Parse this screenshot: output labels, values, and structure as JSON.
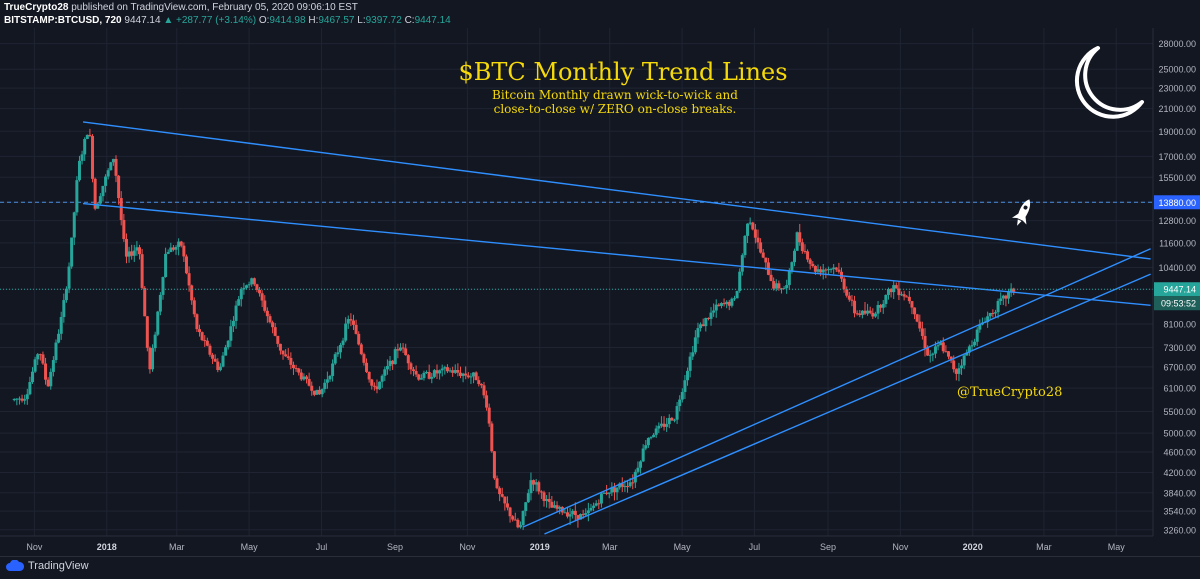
{
  "header": {
    "author": "TrueCrypto28",
    "published_text": " published on TradingView.com, February 05, 2020 09:06:10 EST",
    "symbol": "BITSTAMP:BTCUSD, 720",
    "last": "9447.14",
    "change": "▲ +287.77 (+3.14%)",
    "o_label": "O:",
    "o_value": "9414.98",
    "h_label": "H:",
    "h_value": "9467.57",
    "l_label": "L:",
    "l_value": "9397.72",
    "c_label": "C:",
    "c_value": "9447.14"
  },
  "annotations": {
    "title": "$BTC Monthly Trend Lines",
    "subtitle_line1": "Bitcoin Monthly drawn wick-to-wick and",
    "subtitle_line2": "close-to-close w/ ZERO on-close breaks.",
    "handle": "@TrueCrypto28"
  },
  "footer": {
    "brand": "TradingView"
  },
  "chart_data": {
    "type": "candlestick",
    "symbol": "BTCUSD",
    "interval": "720",
    "scale": "log",
    "ylim": [
      3200,
      30000
    ],
    "y_ticks": [
      "28000.00",
      "25000.00",
      "23000.00",
      "21000.00",
      "19000.00",
      "17000.00",
      "15500.00",
      "13880.00",
      "12800.00",
      "11600.00",
      "10400.00",
      "9447.14",
      "8100.00",
      "7300.00",
      "6700.00",
      "6100.00",
      "5500.00",
      "5000.00",
      "4600.00",
      "4200.00",
      "3840.00",
      "3540.00",
      "3260.00"
    ],
    "y_tick_values": [
      28000,
      25000,
      23000,
      21000,
      19000,
      17000,
      15500,
      13880,
      12800,
      11600,
      10400,
      9447.14,
      8100,
      7300,
      6700,
      6100,
      5500,
      5000,
      4600,
      4200,
      3840,
      3540,
      3260
    ],
    "x_ticks": [
      "Nov",
      "2018",
      "Mar",
      "May",
      "Jul",
      "Sep",
      "Nov",
      "2019",
      "Mar",
      "May",
      "Jul",
      "Sep",
      "Nov",
      "2020",
      "Mar",
      "May"
    ],
    "x_tick_dates": [
      "2017-11-01",
      "2018-01-01",
      "2018-03-01",
      "2018-05-01",
      "2018-07-01",
      "2018-09-01",
      "2018-11-01",
      "2019-01-01",
      "2019-03-01",
      "2019-05-01",
      "2019-07-01",
      "2019-09-01",
      "2019-11-01",
      "2020-01-01",
      "2020-03-01",
      "2020-05-01"
    ],
    "bold_x_ticks": [
      "2018",
      "2019",
      "2020"
    ],
    "price_path": [
      [
        "2017-10-15",
        5800
      ],
      [
        "2017-10-25",
        5900
      ],
      [
        "2017-11-05",
        7300
      ],
      [
        "2017-11-12",
        6100
      ],
      [
        "2017-11-25",
        8600
      ],
      [
        "2017-12-01",
        10800
      ],
      [
        "2017-12-08",
        16200
      ],
      [
        "2017-12-17",
        19500
      ],
      [
        "2017-12-22",
        13500
      ],
      [
        "2017-12-28",
        14800
      ],
      [
        "2018-01-07",
        17000
      ],
      [
        "2018-01-17",
        10800
      ],
      [
        "2018-01-28",
        11500
      ],
      [
        "2018-02-06",
        6500
      ],
      [
        "2018-02-20",
        11200
      ],
      [
        "2018-03-05",
        11500
      ],
      [
        "2018-03-18",
        7900
      ],
      [
        "2018-04-06",
        6600
      ],
      [
        "2018-04-25",
        9600
      ],
      [
        "2018-05-05",
        9800
      ],
      [
        "2018-05-29",
        7100
      ],
      [
        "2018-06-12",
        6500
      ],
      [
        "2018-06-29",
        5900
      ],
      [
        "2018-07-10",
        6700
      ],
      [
        "2018-07-25",
        8400
      ],
      [
        "2018-08-14",
        6000
      ],
      [
        "2018-08-31",
        7000
      ],
      [
        "2018-09-05",
        7400
      ],
      [
        "2018-09-20",
        6400
      ],
      [
        "2018-10-15",
        6600
      ],
      [
        "2018-11-10",
        6400
      ],
      [
        "2018-11-18",
        5600
      ],
      [
        "2018-11-25",
        3900
      ],
      [
        "2018-12-15",
        3250
      ],
      [
        "2018-12-25",
        4100
      ],
      [
        "2019-01-10",
        3600
      ],
      [
        "2019-02-08",
        3450
      ],
      [
        "2019-02-25",
        3850
      ],
      [
        "2019-03-20",
        4050
      ],
      [
        "2019-04-02",
        4900
      ],
      [
        "2019-04-25",
        5400
      ],
      [
        "2019-05-14",
        7900
      ],
      [
        "2019-05-30",
        8700
      ],
      [
        "2019-06-15",
        9000
      ],
      [
        "2019-06-26",
        13200
      ],
      [
        "2019-07-05",
        11300
      ],
      [
        "2019-07-17",
        9600
      ],
      [
        "2019-07-28",
        9500
      ],
      [
        "2019-08-06",
        12000
      ],
      [
        "2019-08-20",
        10300
      ],
      [
        "2019-09-08",
        10400
      ],
      [
        "2019-09-24",
        8500
      ],
      [
        "2019-10-10",
        8500
      ],
      [
        "2019-10-26",
        9600
      ],
      [
        "2019-11-10",
        9000
      ],
      [
        "2019-11-25",
        7000
      ],
      [
        "2019-12-05",
        7400
      ],
      [
        "2019-12-18",
        6550
      ],
      [
        "2019-12-28",
        7200
      ],
      [
        "2020-01-08",
        8100
      ],
      [
        "2020-01-20",
        8700
      ],
      [
        "2020-02-02",
        9350
      ],
      [
        "2020-02-05",
        9447.14
      ]
    ],
    "trend_lines": [
      {
        "from": [
          "2017-12-12",
          19800
        ],
        "to": [
          "2020-05-30",
          10800
        ]
      },
      {
        "from": [
          "2017-12-12",
          13800
        ],
        "to": [
          "2020-05-30",
          8800
        ]
      },
      {
        "from": [
          "2018-12-18",
          3300
        ],
        "to": [
          "2020-05-30",
          11300
        ]
      },
      {
        "from": [
          "2019-01-05",
          3200
        ],
        "to": [
          "2020-05-30",
          10100
        ]
      }
    ],
    "resistance_level": 13880,
    "last_price": 9447.14,
    "countdown": "09:53:52",
    "colors": {
      "up": "#26a69a",
      "down": "#ef5350",
      "trend": "#2f8fff",
      "background": "#131722"
    }
  }
}
